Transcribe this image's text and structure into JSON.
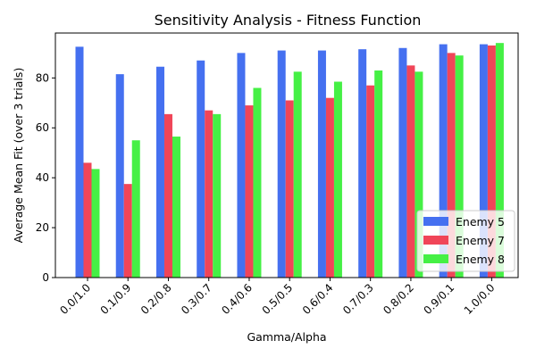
{
  "chart_data": {
    "type": "bar",
    "title": "Sensitivity Analysis - Fitness Function",
    "xlabel": "Gamma/Alpha",
    "ylabel": "Average Mean Fit (over 3 trials)",
    "ylim": [
      0,
      98
    ],
    "yticks": [
      0,
      20,
      40,
      60,
      80
    ],
    "categories": [
      "0.0/1.0",
      "0.1/0.9",
      "0.2/0.8",
      "0.3/0.7",
      "0.4/0.6",
      "0.5/0.5",
      "0.6/0.4",
      "0.7/0.3",
      "0.8/0.2",
      "0.9/0.1",
      "1.0/0.0"
    ],
    "series": [
      {
        "name": "Enemy 5",
        "color": "#4570f0",
        "values": [
          92.5,
          81.5,
          84.5,
          87,
          90,
          91,
          91,
          91.5,
          92,
          93.5,
          93.5
        ]
      },
      {
        "name": "Enemy 7",
        "color": "#f04558",
        "values": [
          46,
          37.5,
          65.5,
          67,
          69,
          71,
          72,
          77,
          85,
          90,
          93
        ]
      },
      {
        "name": "Enemy 8",
        "color": "#45f045",
        "values": [
          43.5,
          55,
          56.5,
          65.5,
          76,
          82.5,
          78.5,
          83,
          82.5,
          89,
          94
        ]
      }
    ],
    "legend_position": "lower-right",
    "grid": false
  }
}
